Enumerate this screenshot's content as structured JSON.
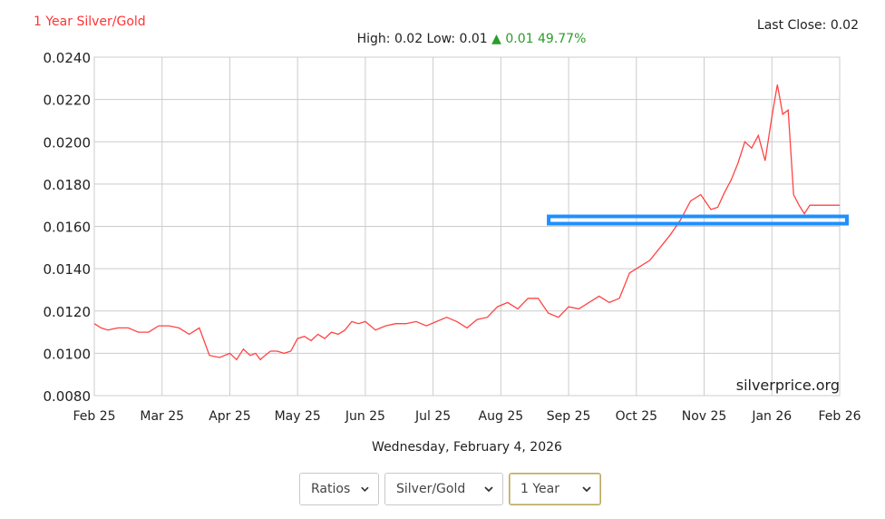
{
  "header": {
    "title": "1 Year Silver/Gold",
    "last_close": "Last Close: 0.02",
    "high_low": "High: 0.02 Low: 0.01",
    "change_arrow": "▲",
    "change": "0.01 49.77%"
  },
  "colors": {
    "title": "#ff3333",
    "line": "#ff4444",
    "up": "#2a9d2a",
    "grid": "#cccccc",
    "highlight": "#1e90ff"
  },
  "watermark": "silverprice.org",
  "date_line": "Wednesday, February 4, 2026",
  "controls": [
    {
      "label": "Ratios"
    },
    {
      "label": "Silver/Gold"
    },
    {
      "label": "1 Year",
      "selected": true
    }
  ],
  "chart_data": {
    "type": "line",
    "y_ticks": [
      "0.0240",
      "0.0220",
      "0.0200",
      "0.0180",
      "0.0160",
      "0.0140",
      "0.0120",
      "0.0100",
      "0.0080"
    ],
    "x_ticks": [
      "Feb 25",
      "Mar 25",
      "Apr 25",
      "May 25",
      "Jun 25",
      "Jul 25",
      "Aug 25",
      "Sep 25",
      "Oct 25",
      "Nov 25",
      "Jan 26",
      "Feb 26"
    ],
    "ylim": [
      0.008,
      0.024
    ],
    "grid": true,
    "highlight_level": 0.0163,
    "highlight_x_range": [
      7.0,
      11.0
    ],
    "series": [
      {
        "x": [
          0,
          0.1,
          0.2,
          0.35,
          0.5,
          0.65,
          0.8,
          0.95,
          1.1,
          1.25,
          1.4,
          1.55,
          1.7,
          1.85,
          2.0,
          2.1,
          2.2,
          2.3,
          2.38,
          2.45,
          2.52,
          2.6,
          2.7,
          2.8,
          2.9,
          3.0,
          3.1,
          3.2,
          3.3,
          3.4,
          3.5,
          3.6,
          3.7,
          3.8,
          3.9,
          4.0,
          4.15,
          4.3,
          4.45,
          4.6,
          4.75,
          4.9,
          5.05,
          5.2,
          5.35,
          5.5,
          5.65,
          5.8,
          5.95,
          6.1,
          6.25,
          6.4,
          6.55,
          6.7,
          6.85,
          7.0,
          7.15,
          7.3,
          7.45,
          7.6,
          7.75,
          7.9,
          8.05,
          8.2,
          8.35,
          8.5,
          8.65,
          8.8,
          8.95,
          9.1,
          9.2,
          9.3,
          9.4,
          9.5,
          9.6,
          9.7,
          9.8,
          9.9,
          10.0,
          10.08,
          10.16,
          10.24,
          10.32,
          10.4,
          10.48,
          10.56,
          10.64,
          10.72,
          10.8,
          10.87,
          10.93,
          10.98,
          11.0
        ],
        "y": [
          0.0114,
          0.0112,
          0.0111,
          0.0112,
          0.0112,
          0.011,
          0.011,
          0.0113,
          0.0113,
          0.0112,
          0.0109,
          0.0112,
          0.0099,
          0.0098,
          0.01,
          0.0097,
          0.0102,
          0.0099,
          0.01,
          0.0097,
          0.0099,
          0.0101,
          0.0101,
          0.01,
          0.0101,
          0.0107,
          0.0108,
          0.0106,
          0.0109,
          0.0107,
          0.011,
          0.0109,
          0.0111,
          0.0115,
          0.0114,
          0.0115,
          0.0111,
          0.0113,
          0.0114,
          0.0114,
          0.0115,
          0.0113,
          0.0115,
          0.0117,
          0.0115,
          0.0112,
          0.0116,
          0.0117,
          0.0122,
          0.0124,
          0.0121,
          0.0126,
          0.0126,
          0.0119,
          0.0117,
          0.0122,
          0.0121,
          0.0124,
          0.0127,
          0.0124,
          0.0126,
          0.0138,
          0.0141,
          0.0144,
          0.015,
          0.0156,
          0.0163,
          0.0172,
          0.0175,
          0.0168,
          0.0169,
          0.0176,
          0.0182,
          0.019,
          0.02,
          0.0197,
          0.0203,
          0.0191,
          0.0212,
          0.0227,
          0.0213,
          0.0215,
          0.0175,
          0.017,
          0.0166,
          0.017,
          0.017,
          0.017,
          0.017,
          0.017,
          0.017,
          0.017,
          0.017
        ]
      }
    ]
  }
}
